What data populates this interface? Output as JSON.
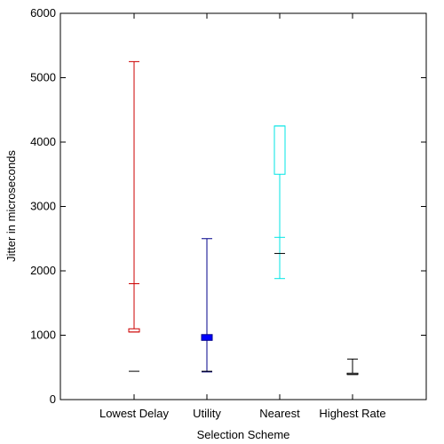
{
  "chart_data": {
    "type": "box",
    "xlabel": "Selection Scheme",
    "ylabel": "Jitter in microseconds",
    "ylim": [
      0,
      6000
    ],
    "yticks": [
      0,
      1000,
      2000,
      3000,
      4000,
      5000,
      6000
    ],
    "grid": false,
    "categories": [
      "Lowest Delay",
      "Utility",
      "Nearest",
      "Highest Rate"
    ],
    "boxes": [
      {
        "category": "Lowest Delay",
        "color": "#cc0000",
        "min": 1050,
        "q1": 1050,
        "q3": 1100,
        "max": 5250,
        "extra_tick": 1800,
        "floor_marker": 440
      },
      {
        "category": "Utility",
        "color": "#00008b",
        "min": 430,
        "q1": 920,
        "q3": 1010,
        "max": 2500,
        "fill": "#0000ff",
        "floor_marker": 440
      },
      {
        "category": "Nearest",
        "color": "#00e5e5",
        "min": 1880,
        "q1": 3500,
        "q3": 4250,
        "max": 4250,
        "extra_tick": 2520,
        "floor_marker": 2270
      },
      {
        "category": "Highest Rate",
        "color": "#000000",
        "min": 390,
        "q1": 390,
        "q3": 410,
        "max": 630
      }
    ]
  }
}
